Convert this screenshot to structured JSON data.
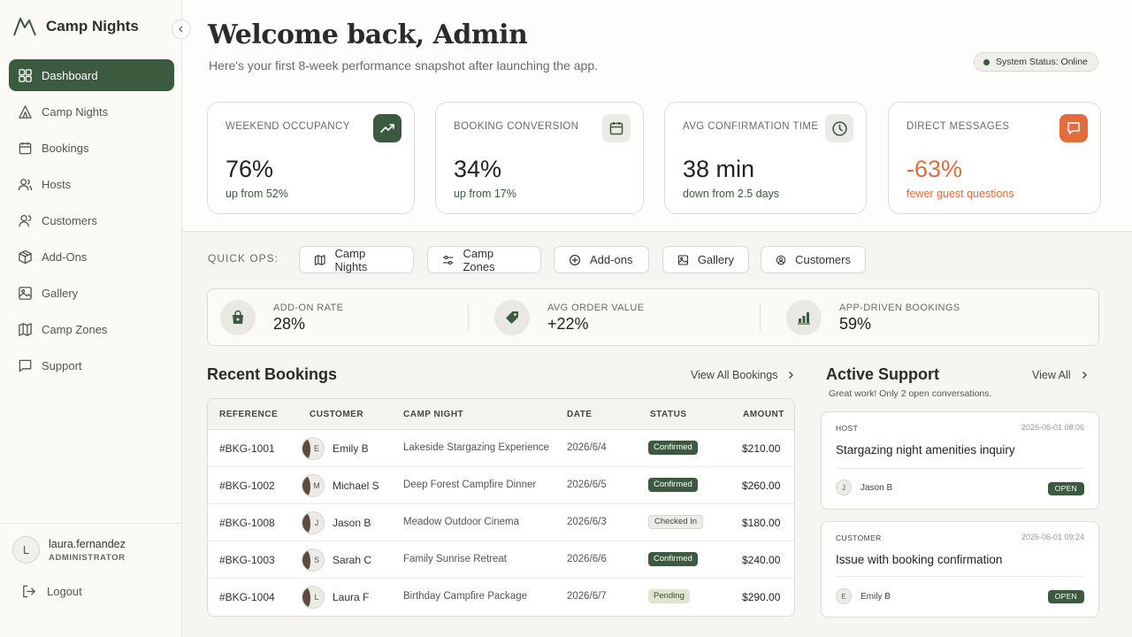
{
  "brand": {
    "name": "Camp Nights"
  },
  "sidebar": {
    "items": [
      {
        "label": "Dashboard",
        "icon": "dashboard-icon",
        "active": true
      },
      {
        "label": "Camp Nights",
        "icon": "tent-icon"
      },
      {
        "label": "Bookings",
        "icon": "calendar-icon"
      },
      {
        "label": "Hosts",
        "icon": "users-icon"
      },
      {
        "label": "Customers",
        "icon": "user-icon"
      },
      {
        "label": "Add-Ons",
        "icon": "package-icon"
      },
      {
        "label": "Gallery",
        "icon": "image-icon"
      },
      {
        "label": "Camp Zones",
        "icon": "map-icon"
      },
      {
        "label": "Support",
        "icon": "message-icon"
      }
    ],
    "user": {
      "initial": "L",
      "name": "laura.fernandez",
      "role": "ADMINISTRATOR"
    },
    "logout": "Logout"
  },
  "header": {
    "title": "Welcome back, Admin",
    "subtitle": "Here's your first 8-week performance snapshot after launching the app.",
    "status": "System Status: Online"
  },
  "kpis": [
    {
      "label": "WEEKEND OCCUPANCY",
      "value": "76%",
      "sub": "up from 52%",
      "icon": "trending-up-icon",
      "icon_bg": "#3c5a40",
      "icon_color": "#ffffff",
      "sub_color": "#3c5a40"
    },
    {
      "label": "BOOKING CONVERSION",
      "value": "34%",
      "sub": "up from 17%",
      "icon": "calendar-icon",
      "icon_bg": "#eceae5",
      "icon_color": "#3c5a40",
      "sub_color": "#3c5a40"
    },
    {
      "label": "AVG CONFIRMATION TIME",
      "value": "38 min",
      "sub": "down from 2.5 days",
      "icon": "clock-icon",
      "icon_bg": "#eceae5",
      "icon_color": "#3c5a40",
      "sub_color": "#3c5a40"
    },
    {
      "label": "DIRECT MESSAGES",
      "value": "-63%",
      "sub": "fewer guest questions",
      "icon": "chat-icon",
      "icon_bg": "#e46b3c",
      "icon_color": "#ffffff",
      "sub_color": "#e46b3c"
    }
  ],
  "quick_ops": {
    "label": "QUICK OPS:",
    "buttons": [
      {
        "label": "Camp Nights",
        "icon": "map-icon"
      },
      {
        "label": "Camp Zones",
        "icon": "sliders-icon"
      },
      {
        "label": "Add-ons",
        "icon": "plus-circle-icon"
      },
      {
        "label": "Gallery",
        "icon": "image-icon"
      },
      {
        "label": "Customers",
        "icon": "user-circle-icon"
      }
    ]
  },
  "stats": [
    {
      "label": "ADD-ON RATE",
      "value": "28%",
      "icon": "shopping-bag-icon"
    },
    {
      "label": "AVG ORDER VALUE",
      "value": "+22%",
      "icon": "tag-icon"
    },
    {
      "label": "APP-DRIVEN BOOKINGS",
      "value": "59%",
      "icon": "bar-chart-icon"
    }
  ],
  "recent_bookings": {
    "title": "Recent Bookings",
    "view_all": "View All Bookings",
    "columns": [
      "REFERENCE",
      "CUSTOMER",
      "CAMP NIGHT",
      "DATE",
      "STATUS",
      "AMOUNT"
    ],
    "rows": [
      {
        "ref": "#BKG-1001",
        "initial": "E",
        "customer": "Emily B",
        "camp": "Lakeside Stargazing Experience",
        "date": "2026/6/4",
        "status": "Confirmed",
        "amount": "$210.00"
      },
      {
        "ref": "#BKG-1002",
        "initial": "M",
        "customer": "Michael S",
        "camp": "Deep Forest Campfire Dinner",
        "date": "2026/6/5",
        "status": "Confirmed",
        "amount": "$260.00"
      },
      {
        "ref": "#BKG-1008",
        "initial": "J",
        "customer": "Jason B",
        "camp": "Meadow Outdoor Cinema",
        "date": "2026/6/3",
        "status": "Checked In",
        "amount": "$180.00"
      },
      {
        "ref": "#BKG-1003",
        "initial": "S",
        "customer": "Sarah C",
        "camp": "Family Sunrise Retreat",
        "date": "2026/6/6",
        "status": "Confirmed",
        "amount": "$240.00"
      },
      {
        "ref": "#BKG-1004",
        "initial": "L",
        "customer": "Laura F",
        "camp": "Birthday Campfire Package",
        "date": "2026/6/7",
        "status": "Pending",
        "amount": "$290.00"
      }
    ]
  },
  "support": {
    "title": "Active Support",
    "view_all": "View All",
    "subtitle": "Great work! Only 2 open conversations.",
    "tickets": [
      {
        "type": "HOST",
        "time": "2026-06-01 08:06",
        "title": "Stargazing night amenities inquiry",
        "initial": "J",
        "user": "Jason B",
        "status": "OPEN"
      },
      {
        "type": "CUSTOMER",
        "time": "2026-06-01 09:24",
        "title": "Issue with booking confirmation",
        "initial": "E",
        "user": "Emily B",
        "status": "OPEN"
      }
    ]
  }
}
